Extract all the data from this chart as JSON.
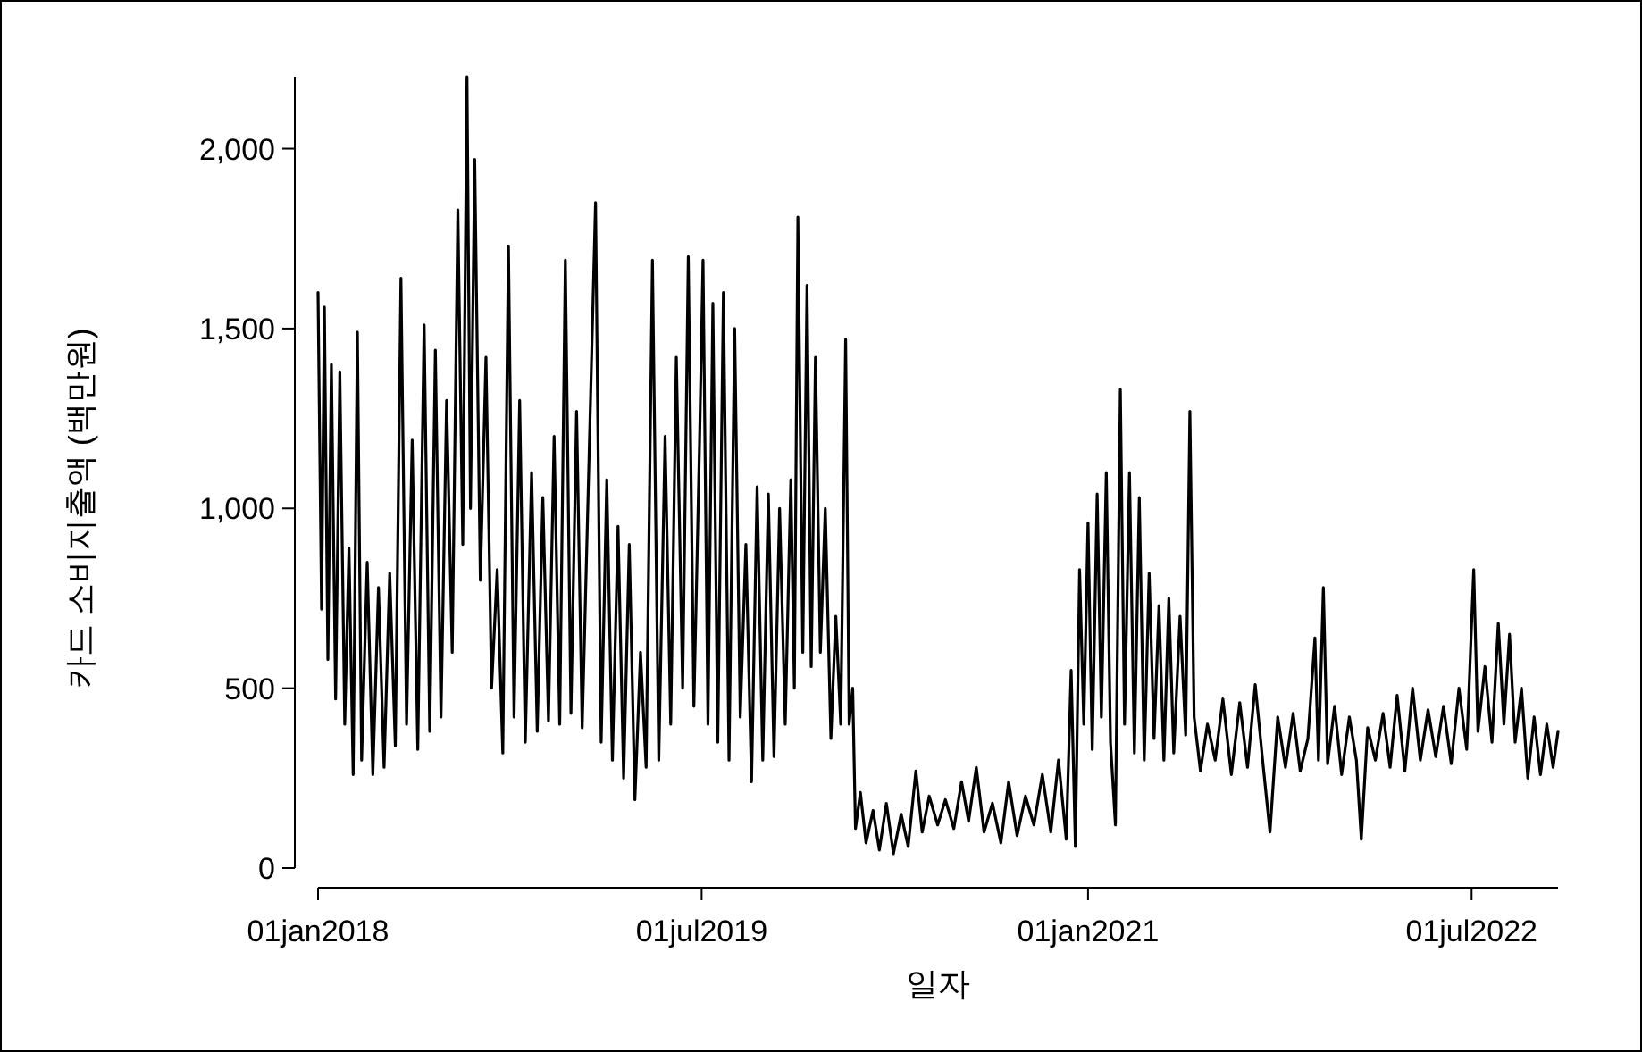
{
  "chart_data": {
    "type": "line",
    "xlabel": "일자",
    "ylabel": "카드 소비지출액 (백만원)",
    "xlim": [
      "2018-01-01",
      "2022-11-01"
    ],
    "ylim": [
      0,
      2200
    ],
    "xticks": [
      {
        "value": "2018-01-01",
        "label": "01jan2018"
      },
      {
        "value": "2019-07-01",
        "label": "01jul2019"
      },
      {
        "value": "2021-01-01",
        "label": "01jan2021"
      },
      {
        "value": "2022-07-01",
        "label": "01jul2022"
      }
    ],
    "yticks": [
      0,
      500,
      {
        "value": 1000,
        "label": "1,000"
      },
      {
        "value": 1500,
        "label": "1,500"
      },
      {
        "value": 2000,
        "label": "2,000"
      }
    ],
    "x": [
      "2018-01-01",
      "2018-01-06",
      "2018-01-10",
      "2018-01-15",
      "2018-01-20",
      "2018-01-26",
      "2018-02-01",
      "2018-02-08",
      "2018-02-14",
      "2018-02-20",
      "2018-02-26",
      "2018-03-04",
      "2018-03-12",
      "2018-03-20",
      "2018-03-28",
      "2018-04-05",
      "2018-04-13",
      "2018-04-21",
      "2018-04-29",
      "2018-05-07",
      "2018-05-15",
      "2018-05-23",
      "2018-06-01",
      "2018-06-09",
      "2018-06-17",
      "2018-06-25",
      "2018-07-03",
      "2018-07-11",
      "2018-07-19",
      "2018-07-26",
      "2018-08-01",
      "2018-08-06",
      "2018-08-12",
      "2018-08-20",
      "2018-08-28",
      "2018-09-05",
      "2018-09-13",
      "2018-09-21",
      "2018-09-29",
      "2018-10-07",
      "2018-10-15",
      "2018-10-23",
      "2018-11-01",
      "2018-11-09",
      "2018-11-17",
      "2018-11-25",
      "2018-12-03",
      "2018-12-11",
      "2018-12-19",
      "2018-12-27",
      "2019-01-04",
      "2019-01-12",
      "2019-01-31",
      "2019-02-08",
      "2019-02-16",
      "2019-02-24",
      "2019-03-04",
      "2019-03-12",
      "2019-03-20",
      "2019-03-28",
      "2019-04-05",
      "2019-04-13",
      "2019-04-22",
      "2019-05-01",
      "2019-05-10",
      "2019-05-18",
      "2019-05-26",
      "2019-06-04",
      "2019-06-12",
      "2019-06-20",
      "2019-06-28",
      "2019-07-03",
      "2019-07-10",
      "2019-07-17",
      "2019-07-24",
      "2019-08-01",
      "2019-08-09",
      "2019-08-17",
      "2019-08-25",
      "2019-09-02",
      "2019-09-10",
      "2019-09-18",
      "2019-09-26",
      "2019-10-04",
      "2019-10-12",
      "2019-10-20",
      "2019-10-28",
      "2019-11-05",
      "2019-11-10",
      "2019-11-15",
      "2019-11-22",
      "2019-11-28",
      "2019-12-04",
      "2019-12-10",
      "2019-12-17",
      "2019-12-24",
      "2020-01-01",
      "2020-01-08",
      "2020-01-15",
      "2020-01-22",
      "2020-01-27",
      "2020-02-01",
      "2020-02-05",
      "2020-02-12",
      "2020-02-20",
      "2020-03-01",
      "2020-03-10",
      "2020-03-20",
      "2020-03-30",
      "2020-04-10",
      "2020-04-20",
      "2020-05-01",
      "2020-05-10",
      "2020-05-20",
      "2020-06-01",
      "2020-06-12",
      "2020-06-24",
      "2020-07-05",
      "2020-07-15",
      "2020-07-26",
      "2020-08-06",
      "2020-08-18",
      "2020-08-30",
      "2020-09-10",
      "2020-09-22",
      "2020-10-04",
      "2020-10-16",
      "2020-10-28",
      "2020-11-09",
      "2020-11-20",
      "2020-12-01",
      "2020-12-08",
      "2020-12-14",
      "2020-12-20",
      "2020-12-26",
      "2021-01-01",
      "2021-01-07",
      "2021-01-14",
      "2021-01-20",
      "2021-01-27",
      "2021-02-02",
      "2021-02-09",
      "2021-02-16",
      "2021-02-22",
      "2021-03-01",
      "2021-03-08",
      "2021-03-15",
      "2021-03-22",
      "2021-03-29",
      "2021-04-05",
      "2021-04-12",
      "2021-04-19",
      "2021-04-26",
      "2021-05-03",
      "2021-05-12",
      "2021-05-20",
      "2021-05-26",
      "2021-06-01",
      "2021-06-10",
      "2021-06-20",
      "2021-07-01",
      "2021-07-12",
      "2021-07-24",
      "2021-08-05",
      "2021-08-16",
      "2021-08-27",
      "2021-09-07",
      "2021-09-17",
      "2021-09-28",
      "2021-10-09",
      "2021-10-20",
      "2021-10-30",
      "2021-11-10",
      "2021-11-20",
      "2021-11-25",
      "2021-12-02",
      "2021-12-08",
      "2021-12-18",
      "2021-12-28",
      "2022-01-08",
      "2022-01-18",
      "2022-01-25",
      "2022-02-03",
      "2022-02-14",
      "2022-02-25",
      "2022-03-07",
      "2022-03-17",
      "2022-03-28",
      "2022-04-08",
      "2022-04-19",
      "2022-04-30",
      "2022-05-11",
      "2022-05-22",
      "2022-06-02",
      "2022-06-13",
      "2022-06-24",
      "2022-07-04",
      "2022-07-10",
      "2022-07-20",
      "2022-07-30",
      "2022-08-08",
      "2022-08-16",
      "2022-08-24",
      "2022-09-01",
      "2022-09-10",
      "2022-09-19",
      "2022-09-28",
      "2022-10-07",
      "2022-10-16",
      "2022-10-25",
      "2022-11-01"
    ],
    "series": [
      {
        "color": "#000000",
        "values": [
          1600,
          720,
          1560,
          580,
          1400,
          470,
          1380,
          400,
          890,
          260,
          1490,
          300,
          850,
          260,
          780,
          280,
          820,
          340,
          1640,
          400,
          1190,
          330,
          1510,
          380,
          1440,
          420,
          1300,
          600,
          1830,
          900,
          2200,
          1000,
          1970,
          800,
          1420,
          500,
          830,
          320,
          1730,
          420,
          1300,
          350,
          1100,
          380,
          1030,
          410,
          1200,
          400,
          1690,
          430,
          1270,
          390,
          1850,
          350,
          1080,
          300,
          950,
          250,
          900,
          190,
          600,
          280,
          1690,
          300,
          1200,
          400,
          1420,
          500,
          1700,
          450,
          1180,
          1690,
          400,
          1570,
          350,
          1600,
          300,
          1500,
          420,
          900,
          240,
          1060,
          300,
          1040,
          310,
          1000,
          400,
          1080,
          500,
          1810,
          600,
          1620,
          560,
          1420,
          600,
          1000,
          360,
          700,
          400,
          1470,
          400,
          500,
          110,
          210,
          70,
          160,
          50,
          180,
          40,
          150,
          60,
          270,
          100,
          200,
          120,
          190,
          110,
          240,
          130,
          280,
          100,
          180,
          70,
          240,
          90,
          200,
          120,
          260,
          100,
          300,
          80,
          550,
          60,
          830,
          400,
          960,
          330,
          1040,
          420,
          1100,
          350,
          120,
          1330,
          400,
          1100,
          320,
          1030,
          300,
          820,
          360,
          730,
          300,
          750,
          320,
          700,
          370,
          1270,
          420,
          270,
          400,
          300,
          470,
          260,
          460,
          280,
          510,
          290,
          100,
          420,
          280,
          430,
          270,
          360,
          640,
          300,
          780,
          290,
          450,
          260,
          420,
          300,
          80,
          390,
          300,
          430,
          280,
          480,
          270,
          500,
          300,
          440,
          310,
          450,
          290,
          500,
          330,
          830,
          380,
          560,
          350,
          680,
          400,
          650,
          350,
          500,
          250,
          420,
          260,
          400,
          280,
          380
        ]
      }
    ]
  }
}
